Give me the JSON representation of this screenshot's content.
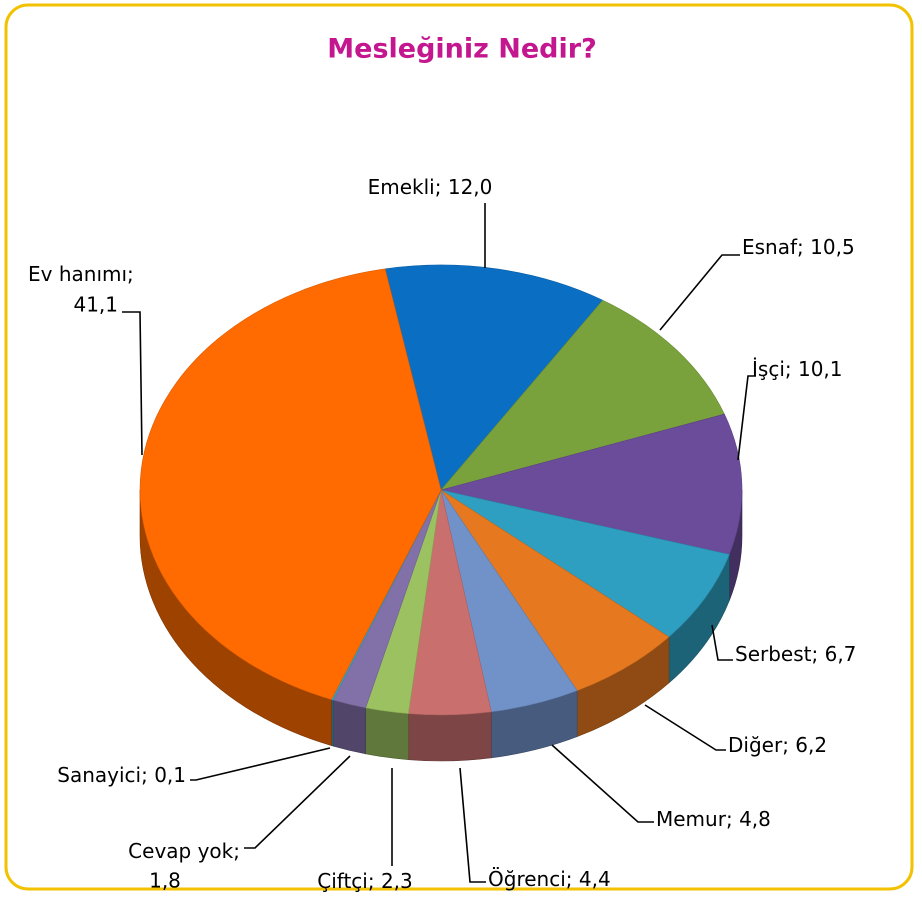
{
  "chart_data": {
    "type": "pie3d",
    "title": "Mesleğiniz Nedir?",
    "label_separator": "; ",
    "categories": [
      "Emekli",
      "Esnaf",
      "İşçi",
      "Serbest",
      "Diğer",
      "Memur",
      "Öğrenci",
      "Çiftçi",
      "Cevap yok",
      "Sanayici",
      "Ev hanımı"
    ],
    "values": [
      12.0,
      10.5,
      10.1,
      6.7,
      6.2,
      4.8,
      4.4,
      2.3,
      1.8,
      0.1,
      41.1
    ],
    "value_labels": [
      "12,0",
      "10,5",
      "10,1",
      "6,7",
      "6,2",
      "4,8",
      "4,4",
      "2,3",
      "1,8",
      "0,1",
      "41,1"
    ],
    "colors": [
      "#0a6fc2",
      "#7aa23c",
      "#6b4c9a",
      "#2f9fc1",
      "#e6791f",
      "#7192c9",
      "#c9706f",
      "#9cc161",
      "#8271a9",
      "#3fa0c1",
      "#ff6b00"
    ]
  }
}
